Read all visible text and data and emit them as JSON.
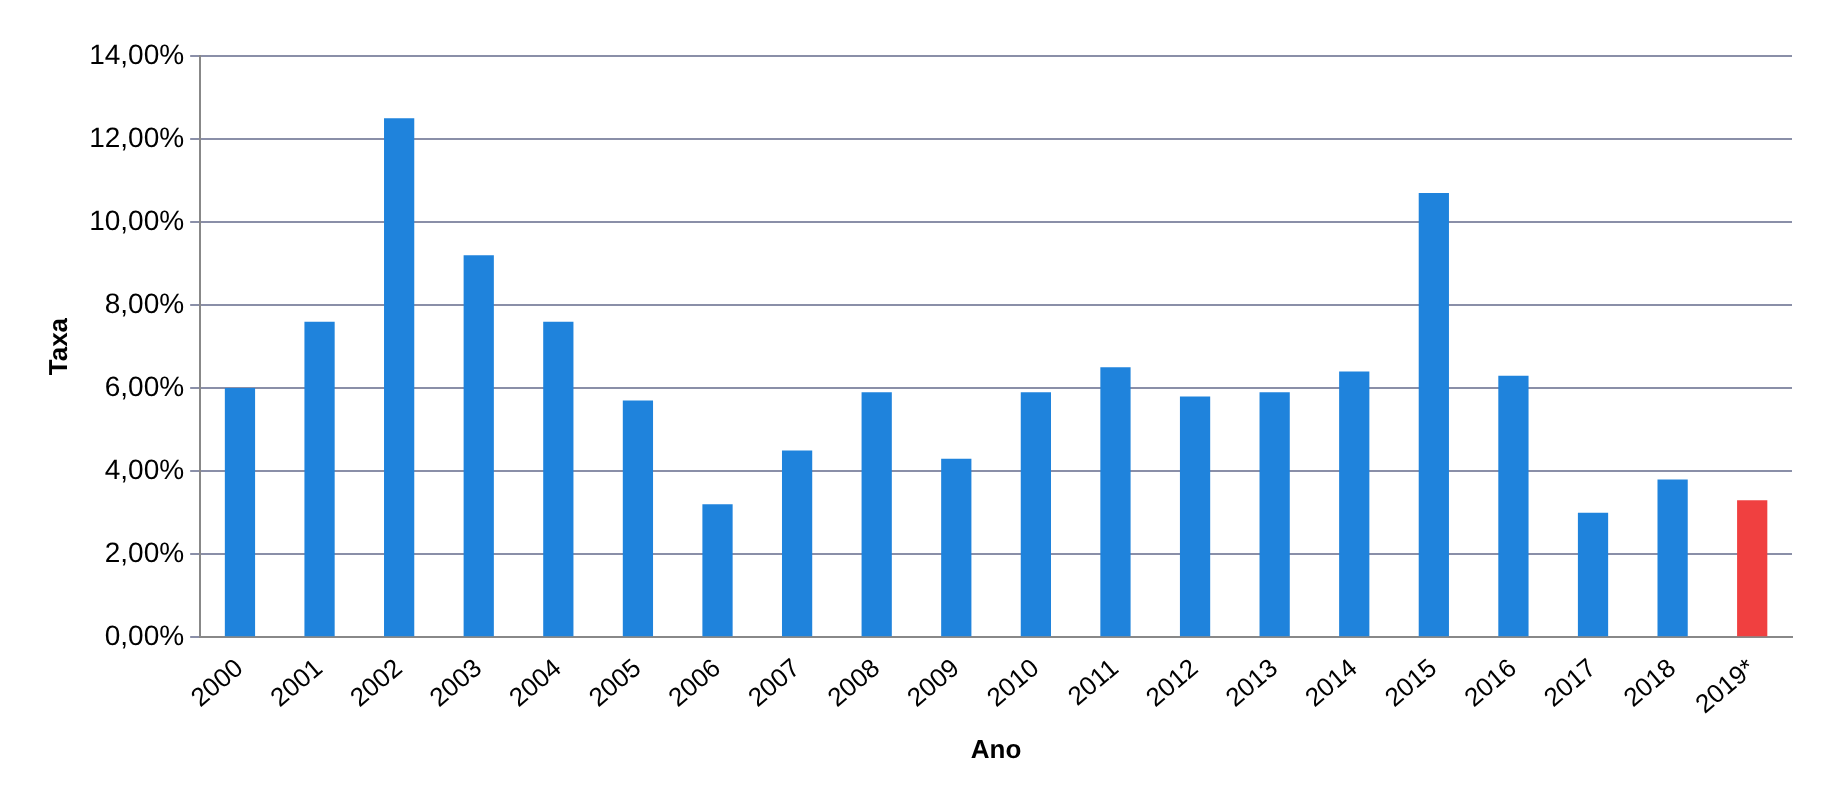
{
  "chart_data": {
    "type": "bar",
    "xlabel": "Ano",
    "ylabel": "Taxa",
    "categories": [
      "2000",
      "2001",
      "2002",
      "2003",
      "2004",
      "2005",
      "2006",
      "2007",
      "2008",
      "2009",
      "2010",
      "2011",
      "2012",
      "2013",
      "2014",
      "2015",
      "2016",
      "2017",
      "2018",
      "2019*"
    ],
    "values": [
      6.0,
      7.6,
      12.5,
      9.2,
      7.6,
      5.7,
      3.2,
      4.5,
      5.9,
      4.3,
      5.9,
      6.5,
      5.8,
      5.9,
      6.4,
      10.7,
      6.3,
      3.0,
      3.8,
      3.3
    ],
    "colors": [
      "#1f83dc",
      "#1f83dc",
      "#1f83dc",
      "#1f83dc",
      "#1f83dc",
      "#1f83dc",
      "#1f83dc",
      "#1f83dc",
      "#1f83dc",
      "#1f83dc",
      "#1f83dc",
      "#1f83dc",
      "#1f83dc",
      "#1f83dc",
      "#1f83dc",
      "#1f83dc",
      "#1f83dc",
      "#1f83dc",
      "#1f83dc",
      "#f04040"
    ],
    "ylim": [
      0,
      14
    ],
    "yticks": [
      {
        "value": 0,
        "label": "0,00%"
      },
      {
        "value": 2,
        "label": "2,00%"
      },
      {
        "value": 4,
        "label": "4,00%"
      },
      {
        "value": 6,
        "label": "6,00%"
      },
      {
        "value": 8,
        "label": "8,00%"
      },
      {
        "value": 10,
        "label": "10,00%"
      },
      {
        "value": 12,
        "label": "12,00%"
      },
      {
        "value": 14,
        "label": "14,00%"
      }
    ],
    "grid": "y",
    "legend": false
  }
}
